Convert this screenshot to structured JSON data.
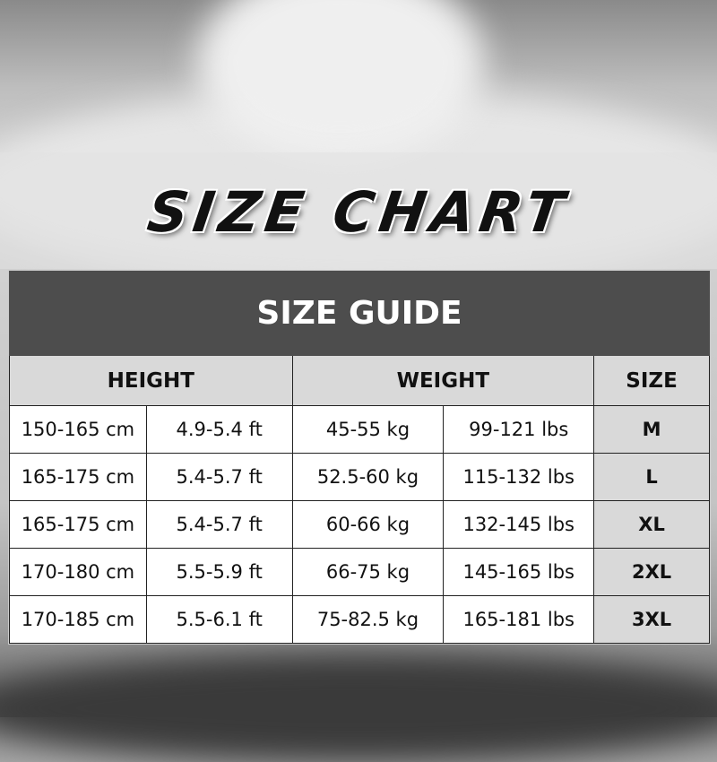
{
  "title": "SIZE CHART",
  "table": {
    "heading": "SIZE GUIDE",
    "columns": [
      "HEIGHT",
      "WEIGHT",
      "SIZE"
    ],
    "rows": [
      [
        "150-165 cm",
        "4.9-5.4 ft",
        "45-55 kg",
        "99-121 lbs",
        "M"
      ],
      [
        "165-175 cm",
        "5.4-5.7 ft",
        "52.5-60 kg",
        "115-132 lbs",
        "L"
      ],
      [
        "165-175 cm",
        "5.4-5.7 ft",
        "60-66 kg",
        "132-145 lbs",
        "XL"
      ],
      [
        "170-180 cm",
        "5.5-5.9 ft",
        "66-75 kg",
        "145-165 lbs",
        "2XL"
      ],
      [
        "170-185 cm",
        "5.5-6.1 ft",
        "75-82.5 kg",
        "165-181 lbs",
        "3XL"
      ]
    ]
  },
  "colors": {
    "heading_bg": "#4d4d4d",
    "header_bg": "#d9d9d9",
    "size_bg": "#d9d9d9"
  }
}
